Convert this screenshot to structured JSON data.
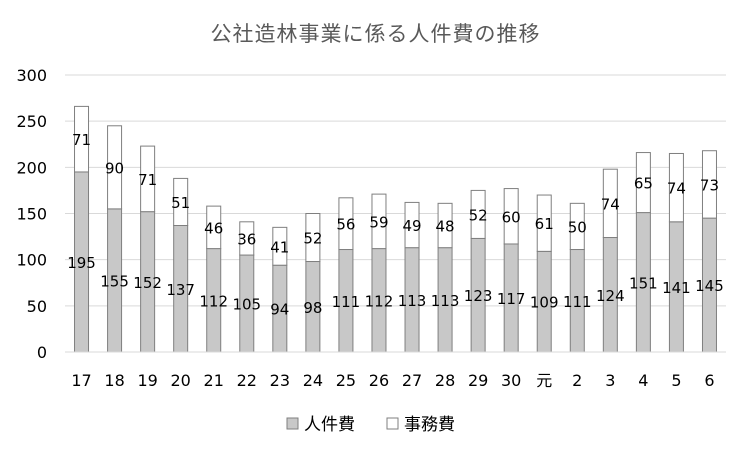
{
  "chart_data": {
    "type": "bar",
    "stacked": true,
    "title": "公社造林事業に係る人件費の推移",
    "xlabel": "",
    "ylabel": "",
    "categories": [
      "17",
      "18",
      "19",
      "20",
      "21",
      "22",
      "23",
      "24",
      "25",
      "26",
      "27",
      "28",
      "29",
      "30",
      "元",
      "2",
      "3",
      "4",
      "5",
      "6"
    ],
    "series": [
      {
        "name": "人件費",
        "color": "#c8c8c8",
        "values": [
          195,
          155,
          152,
          137,
          112,
          105,
          94,
          98,
          111,
          112,
          113,
          113,
          123,
          117,
          109,
          111,
          124,
          151,
          141,
          145
        ]
      },
      {
        "name": "事務費",
        "color": "#ffffff",
        "values": [
          71,
          90,
          71,
          51,
          46,
          36,
          41,
          52,
          56,
          59,
          49,
          48,
          52,
          60,
          61,
          50,
          74,
          65,
          74,
          73
        ]
      }
    ],
    "ylim": [
      0,
      300
    ],
    "yticks": [
      "0",
      "50",
      "100",
      "150",
      "200",
      "250",
      "300"
    ],
    "grid": true,
    "legend_position": "bottom"
  }
}
